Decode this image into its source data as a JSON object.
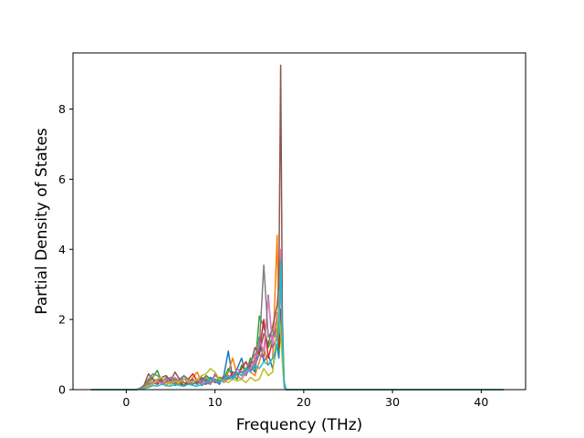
{
  "chart_data": {
    "type": "line",
    "title": "",
    "xlabel": "Frequency (THz)",
    "ylabel": "Partial Density of States",
    "xlim": [
      -6,
      45
    ],
    "ylim": [
      0,
      9.6
    ],
    "xticks": [
      0,
      10,
      20,
      30,
      40
    ],
    "yticks": [
      0,
      2,
      4,
      6,
      8
    ],
    "grid": false,
    "legend": "none",
    "colors": [
      "#1f77b4",
      "#ff7f0e",
      "#2ca02c",
      "#d62728",
      "#9467bd",
      "#8c564b",
      "#e377c2",
      "#7f7f7f",
      "#bcbd22",
      "#17becf"
    ],
    "x": [
      -4,
      0,
      1,
      1.5,
      2,
      2.5,
      3,
      3.5,
      4,
      4.5,
      5,
      5.5,
      6,
      6.5,
      7,
      7.5,
      8,
      8.5,
      9,
      9.5,
      10,
      10.5,
      11,
      11.5,
      12,
      12.5,
      13,
      13.5,
      14,
      14.5,
      15,
      15.5,
      16,
      16.5,
      17,
      17.2,
      17.4,
      17.6,
      17.8,
      18,
      20,
      30,
      42.5
    ],
    "series": [
      {
        "values": [
          0,
          0,
          0,
          0.02,
          0.08,
          0.15,
          0.22,
          0.3,
          0.15,
          0.2,
          0.28,
          0.12,
          0.18,
          0.1,
          0.25,
          0.15,
          0.3,
          0.12,
          0.2,
          0.35,
          0.25,
          0.15,
          0.4,
          1.1,
          0.3,
          0.6,
          0.9,
          0.4,
          0.7,
          0.5,
          1.5,
          0.8,
          1.0,
          0.6,
          1.3,
          0.9,
          2.2,
          1.0,
          0.2,
          0,
          0,
          0,
          0
        ]
      },
      {
        "values": [
          0,
          0,
          0,
          0.01,
          0.05,
          0.2,
          0.3,
          0.25,
          0.3,
          0.1,
          0.3,
          0.2,
          0.15,
          0.3,
          0.2,
          0.35,
          0.5,
          0.2,
          0.3,
          0.2,
          0.4,
          0.3,
          0.2,
          0.5,
          0.9,
          0.4,
          0.3,
          0.6,
          0.5,
          0.4,
          0.8,
          1.2,
          0.7,
          0.9,
          4.4,
          1.5,
          2.0,
          1.5,
          0.1,
          0,
          0,
          0,
          0
        ]
      },
      {
        "values": [
          0,
          0,
          0,
          0.02,
          0.1,
          0.25,
          0.35,
          0.55,
          0.2,
          0.3,
          0.2,
          0.15,
          0.3,
          0.1,
          0.2,
          0.3,
          0.15,
          0.25,
          0.4,
          0.3,
          0.2,
          0.35,
          0.3,
          0.6,
          0.4,
          0.3,
          0.7,
          0.5,
          0.9,
          0.6,
          2.1,
          1.8,
          1.2,
          1.5,
          2.0,
          1.1,
          1.6,
          0.9,
          0.1,
          0,
          0,
          0,
          0
        ]
      },
      {
        "values": [
          0,
          0,
          0,
          0.01,
          0.05,
          0.1,
          0.2,
          0.15,
          0.25,
          0.2,
          0.15,
          0.3,
          0.2,
          0.1,
          0.3,
          0.45,
          0.25,
          0.2,
          0.15,
          0.3,
          0.2,
          0.25,
          0.35,
          0.3,
          0.5,
          0.4,
          0.6,
          0.8,
          0.5,
          0.9,
          1.1,
          2.0,
          0.9,
          1.4,
          1.8,
          1.2,
          2.3,
          0.8,
          0.1,
          0,
          0,
          0,
          0
        ]
      },
      {
        "values": [
          0,
          0,
          0,
          0.01,
          0.03,
          0.08,
          0.15,
          0.3,
          0.2,
          0.35,
          0.25,
          0.2,
          0.3,
          0.4,
          0.2,
          0.15,
          0.25,
          0.3,
          0.2,
          0.15,
          0.45,
          0.3,
          0.25,
          0.35,
          0.4,
          0.6,
          0.5,
          0.4,
          0.8,
          0.7,
          1.0,
          0.9,
          2.7,
          1.2,
          1.5,
          1.9,
          3.2,
          1.0,
          0.1,
          0,
          0,
          0,
          0
        ]
      },
      {
        "values": [
          0,
          0,
          0,
          0.03,
          0.12,
          0.45,
          0.3,
          0.2,
          0.35,
          0.4,
          0.25,
          0.5,
          0.3,
          0.2,
          0.15,
          0.3,
          0.2,
          0.35,
          0.25,
          0.2,
          0.3,
          0.2,
          0.35,
          0.4,
          0.3,
          0.5,
          0.4,
          0.6,
          0.7,
          1.2,
          1.0,
          1.6,
          1.3,
          1.8,
          2.4,
          3.0,
          9.25,
          2.0,
          0.1,
          0,
          0,
          0,
          0
        ]
      },
      {
        "values": [
          0,
          0,
          0,
          0.01,
          0.04,
          0.12,
          0.2,
          0.25,
          0.15,
          0.3,
          0.2,
          0.35,
          0.25,
          0.3,
          0.2,
          0.25,
          0.3,
          0.15,
          0.35,
          0.2,
          0.25,
          0.3,
          0.2,
          0.3,
          0.35,
          0.4,
          0.3,
          0.5,
          0.6,
          0.8,
          1.4,
          1.1,
          2.6,
          1.3,
          2.2,
          1.6,
          4.0,
          1.2,
          0.1,
          0,
          0,
          0,
          0
        ]
      },
      {
        "values": [
          0,
          0,
          0,
          0.02,
          0.08,
          0.3,
          0.45,
          0.4,
          0.3,
          0.25,
          0.35,
          0.3,
          0.2,
          0.4,
          0.3,
          0.2,
          0.15,
          0.25,
          0.3,
          0.2,
          0.3,
          0.25,
          0.4,
          0.3,
          0.35,
          0.45,
          0.5,
          0.6,
          0.8,
          1.0,
          1.2,
          3.55,
          1.5,
          1.7,
          1.4,
          2.0,
          1.8,
          1.2,
          0.1,
          0,
          0,
          0,
          0
        ]
      },
      {
        "values": [
          0,
          0,
          0,
          0.01,
          0.05,
          0.1,
          0.15,
          0.3,
          0.35,
          0.2,
          0.15,
          0.25,
          0.2,
          0.3,
          0.25,
          0.2,
          0.3,
          0.4,
          0.45,
          0.6,
          0.5,
          0.3,
          0.25,
          0.2,
          0.3,
          0.25,
          0.3,
          0.2,
          0.35,
          0.25,
          0.3,
          0.6,
          0.4,
          0.5,
          1.8,
          2.3,
          1.6,
          0.8,
          0.05,
          0,
          0,
          0,
          0
        ]
      },
      {
        "values": [
          0,
          0,
          0,
          0.01,
          0.03,
          0.06,
          0.12,
          0.1,
          0.15,
          0.12,
          0.1,
          0.15,
          0.12,
          0.1,
          0.15,
          0.12,
          0.1,
          0.15,
          0.2,
          0.3,
          0.25,
          0.2,
          0.3,
          0.4,
          0.3,
          0.5,
          0.4,
          0.6,
          0.5,
          0.7,
          0.6,
          0.8,
          0.7,
          0.9,
          1.2,
          1.7,
          3.7,
          1.5,
          0.1,
          0,
          0,
          0,
          0
        ]
      }
    ]
  }
}
